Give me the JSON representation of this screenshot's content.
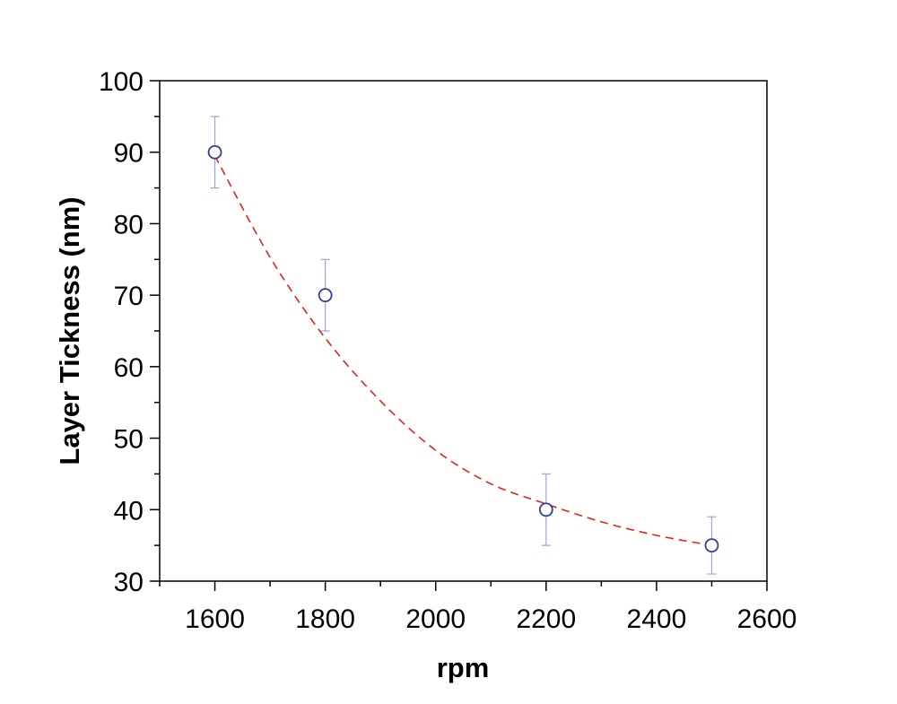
{
  "chart_data": {
    "type": "scatter",
    "title": "",
    "xlabel": "rpm",
    "ylabel": "Layer Tickness (nm)",
    "xlim": [
      1500,
      2600
    ],
    "ylim": [
      30,
      100
    ],
    "xticks": [
      1600,
      1800,
      2000,
      2200,
      2400,
      2600
    ],
    "xticks_minor": [
      1500,
      1700,
      1900,
      2100,
      2300,
      2500
    ],
    "yticks": [
      30,
      40,
      50,
      60,
      70,
      80,
      90,
      100
    ],
    "yticks_minor": [
      35,
      45,
      55,
      65,
      75,
      85,
      95
    ],
    "grid": false,
    "legend": "none",
    "series": [
      {
        "marker": "open-circle",
        "color": "#2e3f9c",
        "error_bar_color": "#9da6d6",
        "x": [
          1600,
          1800,
          2200,
          2500
        ],
        "y": [
          90,
          70,
          40,
          35
        ],
        "yerr": [
          5,
          5,
          5,
          4
        ]
      }
    ],
    "fit": {
      "style": "dashed",
      "color": "#e0231c",
      "x": [
        1600,
        1700,
        1800,
        1900,
        2000,
        2100,
        2200,
        2300,
        2400,
        2500
      ],
      "y": [
        89.5,
        75.3,
        64.0,
        55.2,
        48.3,
        43.6,
        40.8,
        38.3,
        36.4,
        35.0
      ]
    }
  }
}
